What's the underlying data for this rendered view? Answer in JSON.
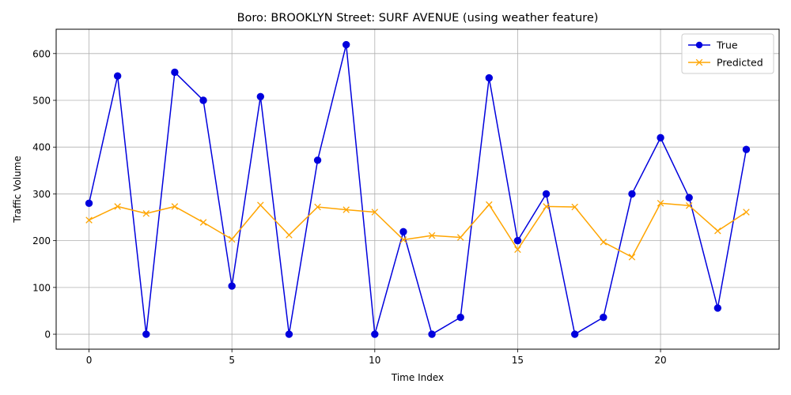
{
  "chart_data": {
    "type": "line",
    "title": "Boro: BROOKLYN Street: SURF AVENUE (using weather feature)",
    "xlabel": "Time Index",
    "ylabel": "Traffic Volume",
    "xlim": [
      -1.15,
      24.15
    ],
    "ylim": [
      -32,
      652
    ],
    "xticks": [
      0,
      5,
      10,
      15,
      20
    ],
    "yticks": [
      0,
      100,
      200,
      300,
      400,
      500,
      600
    ],
    "grid": true,
    "legend": "top-right",
    "x": [
      0,
      1,
      2,
      3,
      4,
      5,
      6,
      7,
      8,
      9,
      10,
      11,
      12,
      13,
      14,
      15,
      16,
      17,
      18,
      19,
      20,
      21,
      22,
      23
    ],
    "series": [
      {
        "name": "True",
        "color": "#0000dd",
        "marker": "circle",
        "values": [
          280,
          552,
          0,
          560,
          500,
          103,
          508,
          0,
          372,
          619,
          0,
          219,
          0,
          36,
          548,
          200,
          300,
          0,
          36,
          300,
          420,
          292,
          56,
          395
        ]
      },
      {
        "name": "Predicted",
        "color": "#ffa500",
        "marker": "x",
        "values": [
          244,
          273,
          258,
          273,
          239,
          203,
          276,
          212,
          272,
          266,
          261,
          202,
          211,
          207,
          277,
          181,
          273,
          272,
          197,
          165,
          280,
          275,
          221,
          261
        ]
      }
    ]
  }
}
